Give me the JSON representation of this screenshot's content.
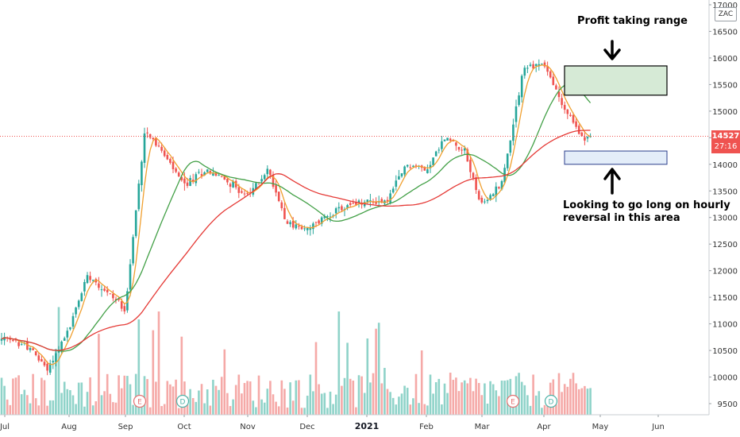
{
  "chart_data": {
    "type": "candlestick",
    "ticker": "ZAC",
    "ylim": [
      9200,
      17000
    ],
    "y_ticks": [
      9500,
      10000,
      10500,
      11000,
      11500,
      12000,
      12500,
      13000,
      13500,
      14000,
      14500,
      15000,
      15500,
      16000,
      16500,
      17000
    ],
    "x_labels": [
      "Jul",
      "Aug",
      "Sep",
      "Oct",
      "Nov",
      "Dec",
      "2021",
      "Feb",
      "Mar",
      "Apr",
      "May",
      "Jun"
    ],
    "last_price": "14527",
    "countdown": "27:16",
    "up_color": "#26a69a",
    "down_color": "#ef5350",
    "ma_fast_color": "#f0a030",
    "ma_mid_color": "#43a047",
    "ma_slow_color": "#e53935",
    "ohlc_anchors": [
      {
        "label": "Jul",
        "close": 10700
      },
      {
        "label": "mid-Jul",
        "close": 10600
      },
      {
        "label": "late-Jul",
        "close": 10150
      },
      {
        "label": "Aug",
        "close": 10900
      },
      {
        "label": "mid-Aug",
        "close": 11950
      },
      {
        "label": "late-Aug",
        "close": 11600
      },
      {
        "label": "Sep",
        "close": 11300
      },
      {
        "label": "mid-Sep",
        "close": 14700
      },
      {
        "label": "late-Sep",
        "close": 14150
      },
      {
        "label": "Oct",
        "close": 13600
      },
      {
        "label": "mid-Oct",
        "close": 13900
      },
      {
        "label": "late-Oct",
        "close": 13700
      },
      {
        "label": "Nov",
        "close": 13400
      },
      {
        "label": "mid-Nov",
        "close": 13900
      },
      {
        "label": "late-Nov",
        "close": 12900
      },
      {
        "label": "Dec",
        "close": 12750
      },
      {
        "label": "mid-Dec",
        "close": 13050
      },
      {
        "label": "late-Dec",
        "close": 13200
      },
      {
        "label": "2021",
        "close": 13300
      },
      {
        "label": "mid-Jan",
        "close": 13300
      },
      {
        "label": "late-Jan",
        "close": 14000
      },
      {
        "label": "Feb",
        "close": 13900
      },
      {
        "label": "mid-Feb",
        "close": 14500
      },
      {
        "label": "late-Feb",
        "close": 14300
      },
      {
        "label": "Mar",
        "close": 13200
      },
      {
        "label": "mid-Mar",
        "close": 13700
      },
      {
        "label": "late-Mar",
        "close": 15800
      },
      {
        "label": "Apr",
        "close": 15900
      },
      {
        "label": "mid-Apr",
        "close": 15100
      },
      {
        "label": "late-Apr",
        "close": 14527
      }
    ],
    "earnings_markers": [
      {
        "letter": "E",
        "near": "Sep"
      },
      {
        "letter": "D",
        "near": "Oct"
      },
      {
        "letter": "E",
        "near": "Mar"
      },
      {
        "letter": "D",
        "near": "Apr"
      }
    ]
  },
  "annotations": {
    "profit_label": "Profit taking range",
    "long_label_line1": "Looking to go long on hourly",
    "long_label_line2": "reversal in this area",
    "profit_zone": [
      15300,
      15850
    ],
    "long_zone": [
      14000,
      14250
    ]
  }
}
